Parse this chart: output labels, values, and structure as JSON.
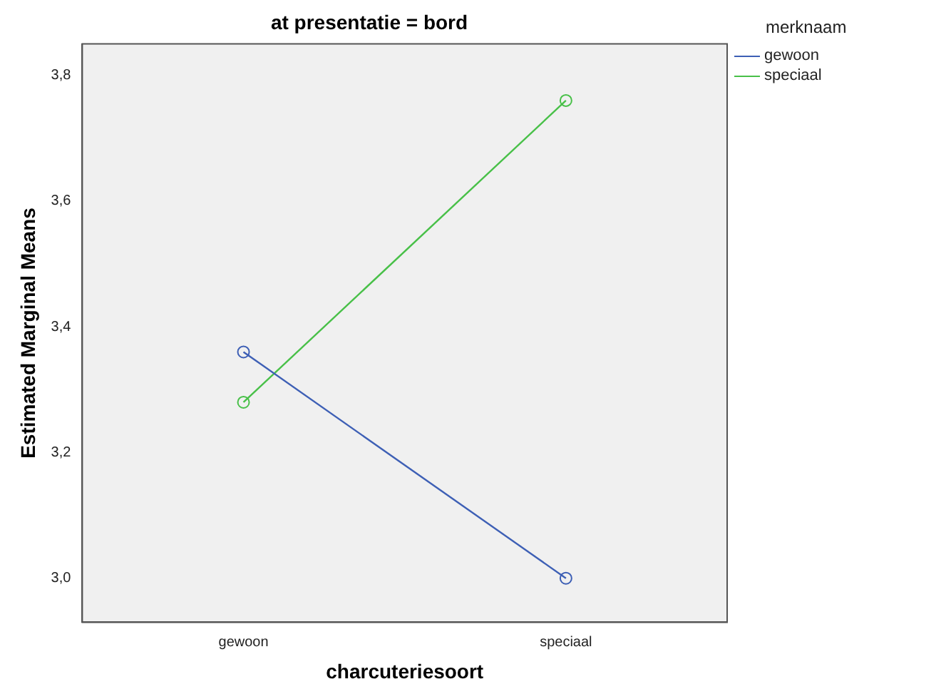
{
  "chart_data": {
    "type": "line",
    "title": "at presentatie = bord",
    "xlabel": "charcuteriesoort",
    "ylabel": "Estimated Marginal Means",
    "legend_title": "merknaam",
    "categories": [
      "gewoon",
      "speciaal"
    ],
    "series": [
      {
        "name": "gewoon",
        "color": "#3d5fb5",
        "values": [
          3.36,
          3.0
        ]
      },
      {
        "name": "speciaal",
        "color": "#48c048",
        "values": [
          3.28,
          3.76
        ]
      }
    ],
    "ylim": [
      2.93,
      3.85
    ],
    "yticks": [
      {
        "value": 3.0,
        "label": "3,0"
      },
      {
        "value": 3.2,
        "label": "3,2"
      },
      {
        "value": 3.4,
        "label": "3,4"
      },
      {
        "value": 3.6,
        "label": "3,6"
      },
      {
        "value": 3.8,
        "label": "3,8"
      }
    ],
    "grid": false,
    "legend": "top right",
    "marker": "circle",
    "line_style": "solid"
  }
}
